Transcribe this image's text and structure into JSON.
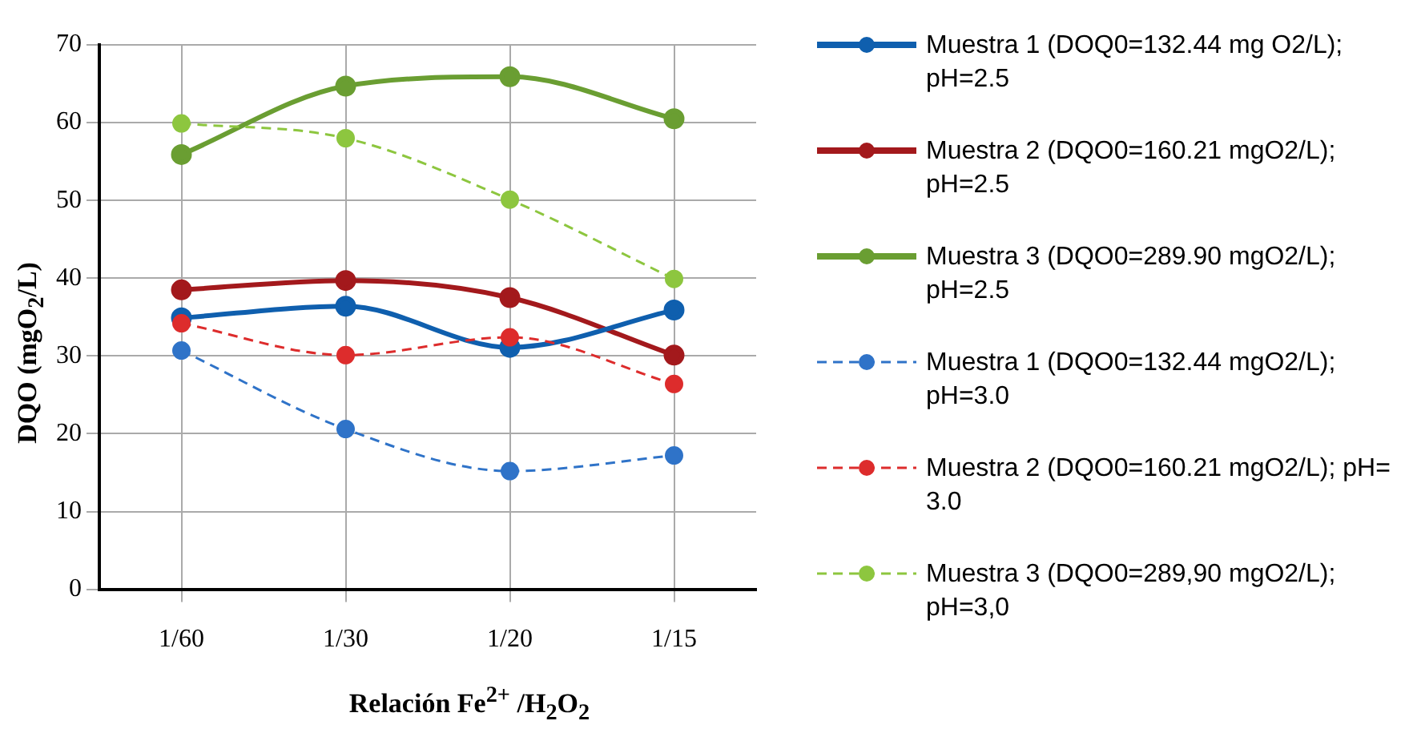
{
  "chart_data": {
    "type": "line",
    "xlabel": "Relación Fe$^{2+}$ /H$_{2}$O$_{2}$",
    "ylabel": "DQO (mgO$_{2}$/L)",
    "categories": [
      "1/60",
      "1/30",
      "1/20",
      "1/15"
    ],
    "ylim": [
      0,
      70
    ],
    "yticks": [
      0,
      10,
      20,
      30,
      40,
      50,
      60,
      70
    ],
    "grid": true,
    "legend": "right",
    "marker": "circle",
    "series": [
      {
        "name": "Muestra 1 (DOQ0=132.44 mg O2/L); pH=2.5",
        "color": "#0f5fae",
        "line_style": "solid",
        "values": [
          34.9,
          36.4,
          31.1,
          35.9
        ]
      },
      {
        "name": "Muestra 2 (DQO0=160.21 mgO2/L); pH=2.5",
        "color": "#a3191c",
        "line_style": "solid",
        "values": [
          38.5,
          39.7,
          37.5,
          30.1
        ]
      },
      {
        "name": "Muestra 3 (DQO0=289.90 mgO2/L); pH=2.5",
        "color": "#6a9e32",
        "line_style": "solid",
        "values": [
          55.9,
          64.7,
          65.9,
          60.5
        ]
      },
      {
        "name": "Muestra 1 (DQO0=132.44 mgO2/L); pH=3.0",
        "color": "#2f73c8",
        "line_style": "dashed",
        "values": [
          30.7,
          20.6,
          15.2,
          17.2
        ]
      },
      {
        "name": "Muestra 2 (DQO0=160.21 mgO2/L); pH= 3.0",
        "color": "#dd2c2c",
        "line_style": "dashed",
        "values": [
          34.2,
          30.1,
          32.4,
          26.4
        ]
      },
      {
        "name": "Muestra 3 (DQO0=289,90 mgO2/L); pH=3,0",
        "color": "#8dc63f",
        "line_style": "dashed",
        "values": [
          59.9,
          58.0,
          50.1,
          39.9
        ]
      }
    ]
  }
}
